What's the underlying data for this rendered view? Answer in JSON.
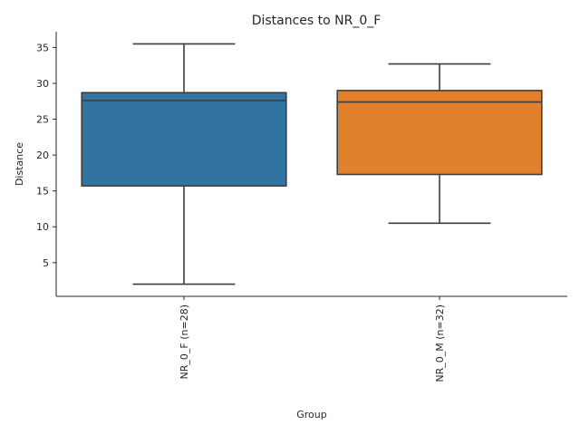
{
  "chart_data": {
    "type": "box",
    "title": "Distances to NR_0_F",
    "xlabel": "Group",
    "ylabel": "Distance",
    "ylim": [
      0.3,
      37.2
    ],
    "yticks": [
      5,
      10,
      15,
      20,
      25,
      30,
      35
    ],
    "grid": false,
    "categories": [
      "NR_0_F (n=28)",
      "NR_0_M (n=32)"
    ],
    "series": [
      {
        "category": "NR_0_F (n=28)",
        "min": 2.0,
        "q1": 15.7,
        "median": 27.6,
        "q3": 28.7,
        "max": 35.5,
        "color": "#3274a1"
      },
      {
        "category": "NR_0_M (n=32)",
        "min": 10.5,
        "q1": 17.3,
        "median": 27.4,
        "q3": 29.0,
        "max": 32.7,
        "color": "#e1812c"
      }
    ]
  }
}
